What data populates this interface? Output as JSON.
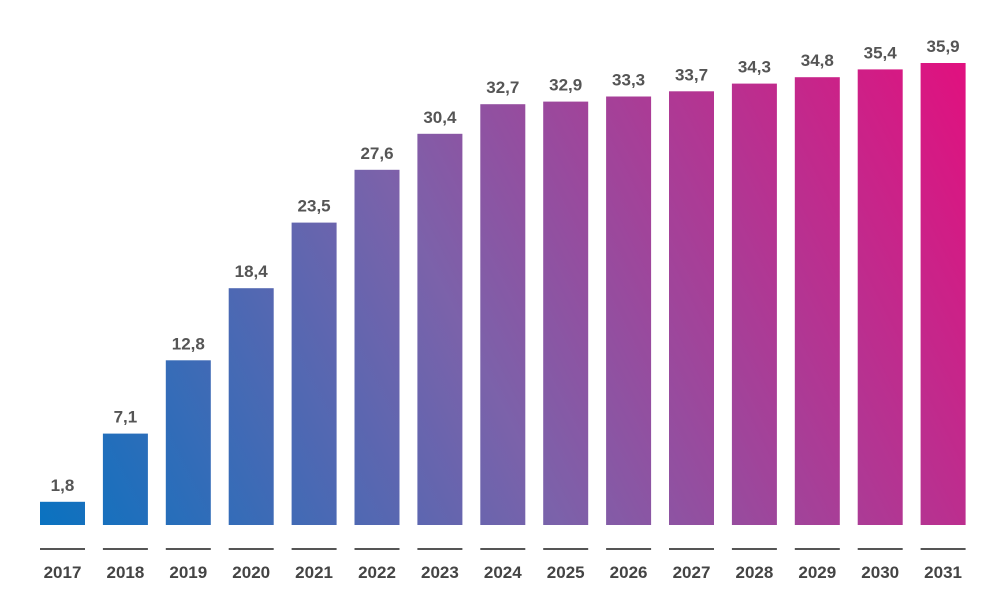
{
  "chart_data": {
    "type": "bar",
    "categories": [
      "2017",
      "2018",
      "2019",
      "2020",
      "2021",
      "2022",
      "2023",
      "2024",
      "2025",
      "2026",
      "2027",
      "2028",
      "2029",
      "2030",
      "2031"
    ],
    "values": [
      1.8,
      7.1,
      12.8,
      18.4,
      23.5,
      27.6,
      30.4,
      32.7,
      32.9,
      33.3,
      33.7,
      34.3,
      34.8,
      35.4,
      35.9
    ],
    "value_labels": [
      "1,8",
      "7,1",
      "12,8",
      "18,4",
      "23,5",
      "27,6",
      "30,4",
      "32,7",
      "32,9",
      "33,3",
      "33,7",
      "34,3",
      "34,8",
      "35,4",
      "35,9"
    ],
    "title": "",
    "xlabel": "",
    "ylabel": "",
    "ylim": [
      0,
      35.9
    ],
    "grid": false,
    "legend": "none",
    "colors": {
      "start": "#0a72c0",
      "end": "#e0117f"
    }
  }
}
